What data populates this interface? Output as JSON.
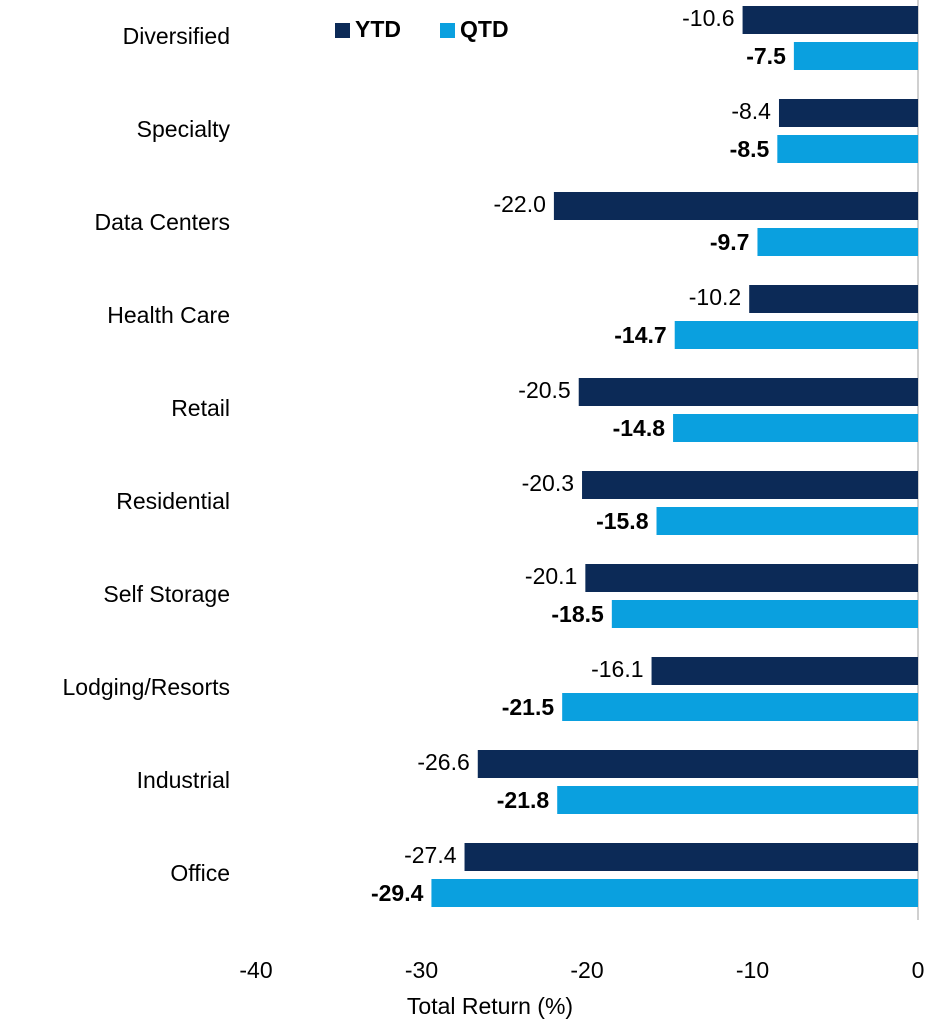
{
  "chart_data": {
    "type": "barh",
    "categories": [
      "Diversified",
      "Specialty",
      "Data Centers",
      "Health Care",
      "Retail",
      "Residential",
      "Self Storage",
      "Lodging/Resorts",
      "Industrial",
      "Office"
    ],
    "series": [
      {
        "name": "YTD",
        "color": "#0c2a57",
        "values": [
          -10.6,
          -8.4,
          -22.0,
          -10.2,
          -20.5,
          -20.3,
          -20.1,
          -16.1,
          -26.6,
          -27.4
        ],
        "value_labels": [
          "-10.6",
          "-8.4",
          "-22.0",
          "-10.2",
          "-20.5",
          "-20.3",
          "-20.1",
          "-16.1",
          "-26.6",
          "-27.4"
        ]
      },
      {
        "name": "QTD",
        "color": "#0aa0df",
        "values": [
          -7.5,
          -8.5,
          -9.7,
          -14.7,
          -14.8,
          -15.8,
          -18.5,
          -21.5,
          -21.8,
          -29.4
        ]
      }
    ],
    "xlabel": "Total Return (%)",
    "xlim": [
      -40,
      0
    ],
    "xticks": [
      -40,
      -30,
      -20,
      -10,
      0
    ]
  }
}
